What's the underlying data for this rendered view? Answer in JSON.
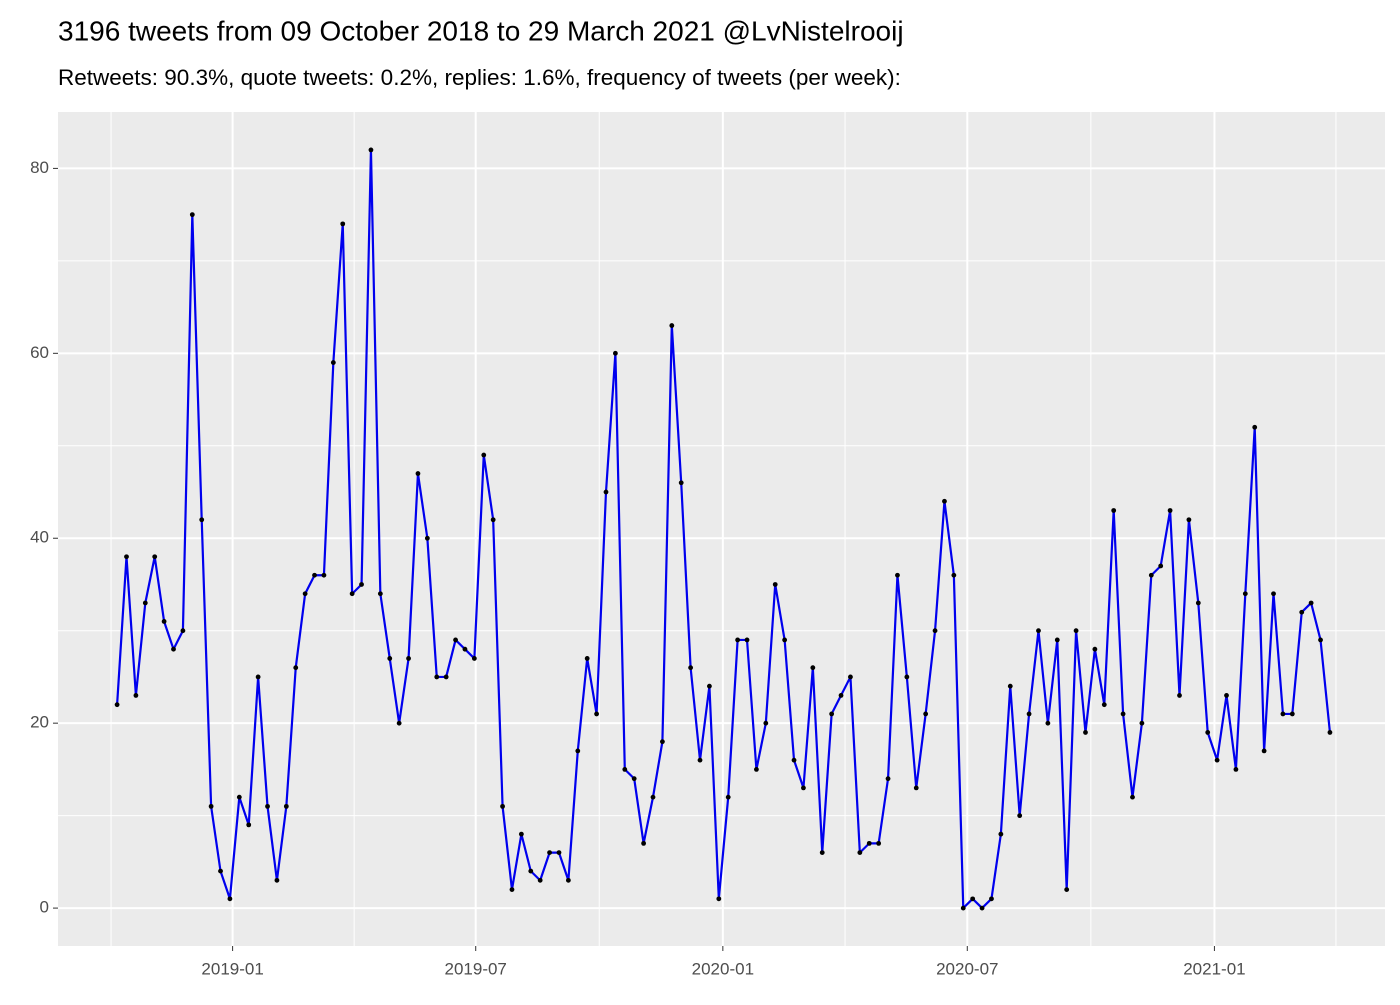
{
  "chart_data": {
    "type": "line",
    "title": "3196 tweets from 09 October 2018 to 29 March 2021 @LvNistelrooij",
    "subtitle": "Retweets: 90.3%, quote tweets: 0.2%, replies: 1.6%, frequency of tweets (per week):",
    "x": [
      "2018-10-07",
      "2018-10-14",
      "2018-10-21",
      "2018-10-28",
      "2018-11-04",
      "2018-11-11",
      "2018-11-18",
      "2018-11-25",
      "2018-12-02",
      "2018-12-09",
      "2018-12-16",
      "2018-12-23",
      "2018-12-30",
      "2019-01-06",
      "2019-01-13",
      "2019-01-20",
      "2019-01-27",
      "2019-02-03",
      "2019-02-10",
      "2019-02-17",
      "2019-02-24",
      "2019-03-03",
      "2019-03-10",
      "2019-03-17",
      "2019-03-24",
      "2019-03-31",
      "2019-04-07",
      "2019-04-14",
      "2019-04-21",
      "2019-04-28",
      "2019-05-05",
      "2019-05-12",
      "2019-05-19",
      "2019-05-26",
      "2019-06-02",
      "2019-06-09",
      "2019-06-16",
      "2019-06-23",
      "2019-06-30",
      "2019-07-07",
      "2019-07-14",
      "2019-07-21",
      "2019-07-28",
      "2019-08-04",
      "2019-08-11",
      "2019-08-18",
      "2019-08-25",
      "2019-09-01",
      "2019-09-08",
      "2019-09-15",
      "2019-09-22",
      "2019-09-29",
      "2019-10-06",
      "2019-10-13",
      "2019-10-20",
      "2019-10-27",
      "2019-11-03",
      "2019-11-10",
      "2019-11-17",
      "2019-11-24",
      "2019-12-01",
      "2019-12-08",
      "2019-12-15",
      "2019-12-22",
      "2019-12-29",
      "2020-01-05",
      "2020-01-12",
      "2020-01-19",
      "2020-01-26",
      "2020-02-02",
      "2020-02-09",
      "2020-02-16",
      "2020-02-23",
      "2020-03-01",
      "2020-03-08",
      "2020-03-15",
      "2020-03-22",
      "2020-03-29",
      "2020-04-05",
      "2020-04-12",
      "2020-04-19",
      "2020-04-26",
      "2020-05-03",
      "2020-05-10",
      "2020-05-17",
      "2020-05-24",
      "2020-05-31",
      "2020-06-07",
      "2020-06-14",
      "2020-06-21",
      "2020-06-28",
      "2020-07-05",
      "2020-07-12",
      "2020-07-19",
      "2020-07-26",
      "2020-08-02",
      "2020-08-09",
      "2020-08-16",
      "2020-08-23",
      "2020-08-30",
      "2020-09-06",
      "2020-09-13",
      "2020-09-20",
      "2020-09-27",
      "2020-10-04",
      "2020-10-11",
      "2020-10-18",
      "2020-10-25",
      "2020-11-01",
      "2020-11-08",
      "2020-11-15",
      "2020-11-22",
      "2020-11-29",
      "2020-12-06",
      "2020-12-13",
      "2020-12-20",
      "2020-12-27",
      "2021-01-03",
      "2021-01-10",
      "2021-01-17",
      "2021-01-24",
      "2021-01-31",
      "2021-02-07",
      "2021-02-14",
      "2021-02-21",
      "2021-02-28",
      "2021-03-07",
      "2021-03-14",
      "2021-03-21",
      "2021-03-28"
    ],
    "series": [
      {
        "color": "#0000ee",
        "values": [
          22,
          38,
          23,
          33,
          38,
          31,
          28,
          30,
          75,
          42,
          11,
          4,
          1,
          12,
          9,
          25,
          11,
          3,
          11,
          26,
          34,
          36,
          36,
          59,
          74,
          34,
          35,
          82,
          34,
          27,
          20,
          27,
          47,
          40,
          25,
          25,
          29,
          28,
          27,
          49,
          42,
          11,
          2,
          8,
          4,
          3,
          6,
          6,
          3,
          17,
          27,
          21,
          45,
          60,
          15,
          14,
          7,
          12,
          18,
          63,
          46,
          26,
          16,
          24,
          1,
          12,
          29,
          29,
          15,
          20,
          35,
          29,
          16,
          13,
          26,
          6,
          21,
          23,
          25,
          6,
          7,
          7,
          14,
          36,
          25,
          13,
          21,
          30,
          44,
          36,
          0,
          1,
          0,
          1,
          8,
          24,
          10,
          21,
          30,
          20,
          29,
          2,
          30,
          19,
          28,
          22,
          43,
          21,
          12,
          20,
          36,
          37,
          43,
          23,
          42,
          33,
          19,
          16,
          23,
          15,
          34,
          52,
          17,
          34,
          21,
          21,
          32,
          33,
          29,
          19
        ]
      }
    ],
    "xlim": [
      "2018-08-24",
      "2021-05-08"
    ],
    "xticks": [
      "2019-01",
      "2019-07",
      "2020-01",
      "2020-07",
      "2021-01"
    ],
    "ylim": [
      -4.1,
      86.1
    ],
    "yticks": [
      0,
      20,
      40,
      60,
      80
    ],
    "grid": true
  }
}
